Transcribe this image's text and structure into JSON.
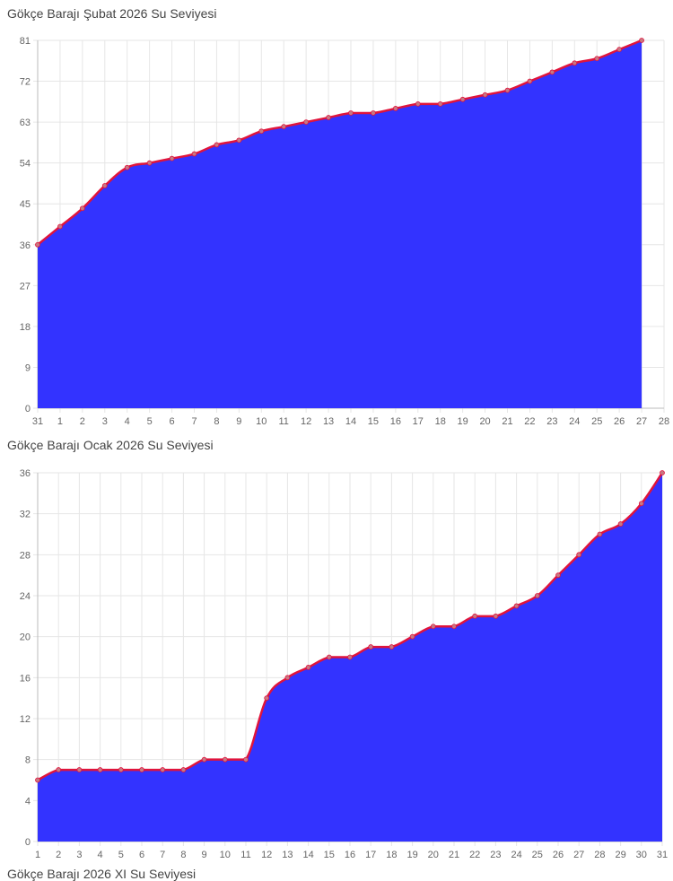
{
  "colors": {
    "fill": "#3333ff",
    "line": "#e0143c",
    "point": "#c87882"
  },
  "chart_data": [
    {
      "type": "area",
      "title": "Gökçe Barajı Şubat 2026 Su Seviyesi",
      "x": [
        "31",
        "1",
        "2",
        "3",
        "4",
        "5",
        "6",
        "7",
        "8",
        "9",
        "10",
        "11",
        "12",
        "13",
        "14",
        "15",
        "16",
        "17",
        "18",
        "19",
        "20",
        "21",
        "22",
        "23",
        "24",
        "25",
        "26",
        "27",
        "28"
      ],
      "values": [
        36,
        40,
        44,
        49,
        53,
        54,
        55,
        56,
        58,
        59,
        61,
        62,
        63,
        64,
        65,
        65,
        66,
        67,
        67,
        68,
        69,
        70,
        72,
        74,
        76,
        77,
        79,
        81,
        null
      ],
      "yticks": [
        0,
        9,
        18,
        27,
        36,
        45,
        54,
        63,
        72,
        81
      ],
      "ylim": [
        0,
        81
      ],
      "grid": true
    },
    {
      "type": "area",
      "title": "Gökçe Barajı Ocak 2026 Su Seviyesi",
      "x": [
        "1",
        "2",
        "3",
        "4",
        "5",
        "6",
        "7",
        "8",
        "9",
        "10",
        "11",
        "12",
        "13",
        "14",
        "15",
        "16",
        "17",
        "18",
        "19",
        "20",
        "21",
        "22",
        "23",
        "24",
        "25",
        "26",
        "27",
        "28",
        "29",
        "30",
        "31"
      ],
      "values": [
        6,
        7,
        7,
        7,
        7,
        7,
        7,
        7,
        8,
        8,
        8,
        14,
        16,
        17,
        18,
        18,
        19,
        19,
        20,
        21,
        21,
        22,
        22,
        23,
        24,
        26,
        28,
        30,
        31,
        33,
        36
      ],
      "yticks": [
        0,
        4,
        8,
        12,
        16,
        20,
        24,
        28,
        32,
        36
      ],
      "ylim": [
        0,
        36
      ],
      "grid": true
    }
  ],
  "partial_title": "Gökçe Barajı 2026 XI Su Seviyesi"
}
